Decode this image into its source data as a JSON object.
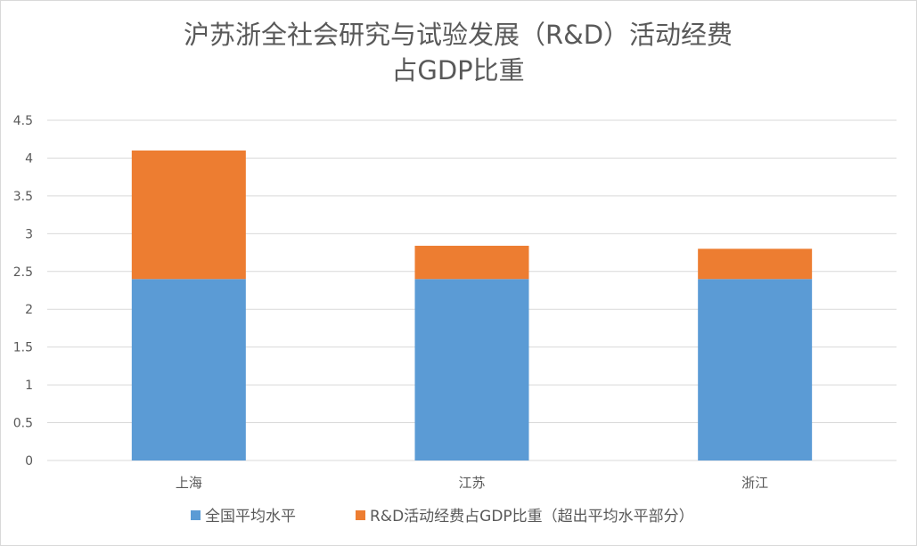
{
  "chart_data": {
    "type": "bar",
    "stacked": true,
    "title": [
      "沪苏浙全社会研究与试验发展（R&D）活动经费",
      "占GDP比重"
    ],
    "xlabel": "",
    "ylabel": "",
    "categories": [
      "上海",
      "江苏",
      "浙江"
    ],
    "series": [
      {
        "name": "全国平均水平",
        "values": [
          2.4,
          2.4,
          2.4
        ],
        "color": "#5B9BD5"
      },
      {
        "name": "R&D活动经费占GDP比重（超出平均水平部分）",
        "values": [
          1.7,
          0.44,
          0.4
        ],
        "color": "#ED7D31"
      }
    ],
    "ylim": [
      0,
      4.5
    ],
    "yticks": [
      "0",
      "0.5",
      "1",
      "1.5",
      "2",
      "2.5",
      "3",
      "3.5",
      "4",
      "4.5"
    ],
    "grid": true,
    "legend": "bottom"
  }
}
